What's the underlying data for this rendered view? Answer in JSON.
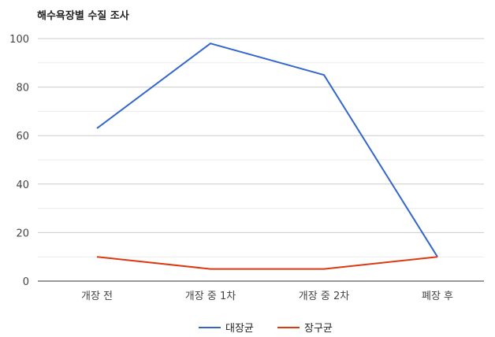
{
  "chart_data": {
    "type": "line",
    "title": "해수욕장별 수질 조사",
    "categories": [
      "개장 전",
      "개장 중 1차",
      "개장 중 2차",
      "폐장 후"
    ],
    "ylim": [
      0,
      100
    ],
    "yticks": [
      0,
      20,
      40,
      60,
      80,
      100
    ],
    "grid": true,
    "legend_position": "bottom",
    "series": [
      {
        "name": "대장균",
        "values": [
          63,
          98,
          85,
          10
        ],
        "color": "#3366cc"
      },
      {
        "name": "장구균",
        "values": [
          10,
          5,
          5,
          10
        ],
        "color": "#dc3912"
      }
    ]
  }
}
